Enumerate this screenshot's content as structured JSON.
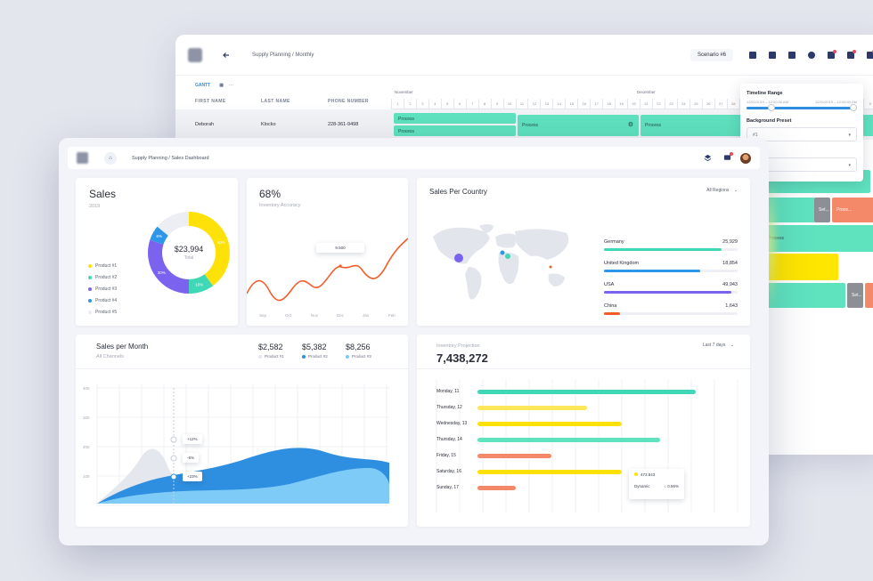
{
  "back": {
    "breadcrumb": "Supply Planning / Monthly",
    "scenario": "Scenario  #6",
    "tab_gantt": "GANTT",
    "columns": [
      "FIRST NAME",
      "LAST NAME",
      "PHONE NUMBER"
    ],
    "months": [
      "November",
      "December"
    ],
    "days": [
      "1",
      "2",
      "3",
      "4",
      "5",
      "6",
      "7",
      "8",
      "9",
      "10",
      "11",
      "12",
      "13",
      "14",
      "15",
      "16",
      "17",
      "18",
      "19",
      "20",
      "21",
      "22",
      "23",
      "24",
      "25",
      "26",
      "27",
      "28",
      "29",
      "30",
      "1",
      "2",
      "3",
      "4",
      "5",
      "6",
      "7",
      "8",
      "9",
      "10"
    ],
    "row": {
      "first": "Deborah",
      "last": "Klocko",
      "phone": "228-361-9498"
    },
    "process_label": "Process",
    "set_label": "Set...",
    "process_short": "Proce...",
    "panel": {
      "timeline_label": "Timeline Range",
      "date_start": "12/01/2019 – 12:00:00 AM",
      "date_end": "12/01/2019 – 12:00:00 AM",
      "preset_label": "Background Preset",
      "preset_value": "#1",
      "preset2_label": "...reset"
    }
  },
  "front": {
    "breadcrumb": "Supply Planning / Sales Dashboard",
    "sales": {
      "title": "Sales",
      "year": "2019",
      "total": "$23,994",
      "total_label": "Total",
      "slices": [
        {
          "name": "Product #1",
          "percent": 40,
          "color": "#ffe10a",
          "label": "40%"
        },
        {
          "name": "Product #2",
          "percent": 10,
          "color": "#3fd7b6",
          "label": "10%"
        },
        {
          "name": "Product #3",
          "percent": 30,
          "color": "#7b63f0",
          "label": "30%"
        },
        {
          "name": "Product #4",
          "percent": 6,
          "color": "#2e96e8",
          "label": "6%"
        },
        {
          "name": "Product #5",
          "percent": 14,
          "color": "#eceef3",
          "label": ""
        }
      ]
    },
    "accuracy": {
      "value": "68%",
      "label": "Inventory Accuracy",
      "tooltip": "9.500",
      "months": [
        "Sep",
        "Oct",
        "Nov",
        "Dec",
        "Jan",
        "Feb"
      ],
      "color": "#f25c2a"
    },
    "country": {
      "title": "Sales Per Country",
      "filter": "All Regions",
      "items": [
        {
          "name": "Germany",
          "value": "25,929",
          "fraction": 0.88,
          "color": "#3fd7b6"
        },
        {
          "name": "United Kingdom",
          "value": "18,854",
          "fraction": 0.72,
          "color": "#2e96e8"
        },
        {
          "name": "USA",
          "value": "49,943",
          "fraction": 0.95,
          "color": "#7b63f0"
        },
        {
          "name": "China",
          "value": "1,643",
          "fraction": 0.12,
          "color": "#f25c2a"
        }
      ]
    },
    "spm": {
      "title": "Sales per Month",
      "subtitle": "All Channels",
      "stats": [
        {
          "value": "$2,582",
          "label": "Product #1",
          "color": "#e4e7ee"
        },
        {
          "value": "$5,382",
          "label": "Product #2",
          "color": "#2e8fe0"
        },
        {
          "value": "$8,256",
          "label": "Product #3",
          "color": "#7fcbf7"
        }
      ],
      "yticks": [
        "400",
        "300",
        "200",
        "100"
      ],
      "tips": [
        "+12%",
        "-5%",
        "+23%"
      ]
    },
    "projection": {
      "label": "Inventory Projection",
      "value": "7,438,272",
      "filter": "Last 7 days",
      "days": [
        {
          "label": "Monday, 11",
          "fraction": 0.86,
          "color": "#3fd7b6"
        },
        {
          "label": "Thursday, 12",
          "fraction": 0.43,
          "color": "#ffe65a"
        },
        {
          "label": "Wednesday, 13",
          "fraction": 0.57,
          "color": "#ffe10a"
        },
        {
          "label": "Thursday, 14",
          "fraction": 0.72,
          "color": "#5fe3bf"
        },
        {
          "label": "Friday, 15",
          "fraction": 0.29,
          "color": "#f4896a"
        },
        {
          "label": "Saturday, 16",
          "fraction": 0.57,
          "color": "#ffe10a"
        },
        {
          "label": "Sunday, 17",
          "fraction": 0.15,
          "color": "#f4896a"
        }
      ],
      "tip_value": "473.843",
      "tip_label": "Dynamic",
      "tip_change": "↓ 0.56%"
    }
  }
}
